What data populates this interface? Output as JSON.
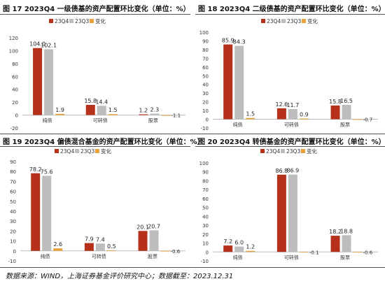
{
  "colors": {
    "q4": "#B5311C",
    "q3": "#BDBDBD",
    "chg": "#E8A33C",
    "axis": "#BBBBBB"
  },
  "charts": [
    {
      "title": "图 17 2023Q4 一级债基的资产配置环比变化（单位：%）",
      "chart_data": {
        "type": "bar",
        "categories": [
          "纯债",
          "可转债",
          "股票"
        ],
        "series": [
          {
            "name": "23Q4",
            "values": [
              104.0,
              15.8,
              1.2
            ]
          },
          {
            "name": "23Q3",
            "values": [
              102.1,
              14.4,
              2.3
            ]
          },
          {
            "name": "变化",
            "values": [
              1.9,
              1.5,
              -1.1
            ]
          }
        ],
        "value_labels": [
          [
            "104.0",
            "15.8",
            "1.2"
          ],
          [
            "102.1",
            "14.4",
            "2.3"
          ],
          [
            "1.9",
            "1.5",
            "-1.1"
          ]
        ],
        "yticks": [
          "120",
          "100",
          "80",
          "60",
          "40",
          "20",
          "0",
          "-20"
        ],
        "ylim": [
          -20,
          120
        ],
        "legend": "top-center"
      }
    },
    {
      "title": "图 18 2023Q4 二级债基的资产配置环比变化（单位：%）",
      "chart_data": {
        "type": "bar",
        "categories": [
          "纯债",
          "可转债",
          "股票"
        ],
        "series": [
          {
            "name": "23Q4",
            "values": [
              85.9,
              12.6,
              15.8
            ]
          },
          {
            "name": "23Q3",
            "values": [
              84.3,
              11.7,
              16.5
            ]
          },
          {
            "name": "变化",
            "values": [
              1.5,
              0.9,
              -0.7
            ]
          }
        ],
        "value_labels": [
          [
            "85.9",
            "12.6",
            "15.8"
          ],
          [
            "84.3",
            "11.7",
            "16.5"
          ],
          [
            "1.5",
            "0.9",
            "-0.7"
          ]
        ],
        "yticks": [
          "100",
          "90",
          "80",
          "70",
          "60",
          "50",
          "40",
          "30",
          "20",
          "10",
          "0",
          "-10"
        ],
        "ylim": [
          -10,
          100
        ],
        "legend": "top-center"
      }
    },
    {
      "title": "图 19 2023Q4 偏债混合基金的资产配置环比变化（单位：%）",
      "chart_data": {
        "type": "bar",
        "categories": [
          "纯债",
          "可转债",
          "股票"
        ],
        "series": [
          {
            "name": "23Q4",
            "values": [
              78.2,
              7.9,
              20.1
            ]
          },
          {
            "name": "23Q3",
            "values": [
              75.6,
              7.4,
              20.7
            ]
          },
          {
            "name": "变化",
            "values": [
              2.6,
              0.5,
              -0.6
            ]
          }
        ],
        "value_labels": [
          [
            "78.2",
            "7.9",
            "20.1"
          ],
          [
            "75.6",
            "7.4",
            "20.7"
          ],
          [
            "2.6",
            "0.5",
            "-0.6"
          ]
        ],
        "yticks": [
          "90",
          "80",
          "70",
          "60",
          "50",
          "40",
          "30",
          "20",
          "10",
          "0",
          "-10"
        ],
        "ylim": [
          -10,
          90
        ],
        "legend": "top-center"
      }
    },
    {
      "title": "图 20 2023Q4 转债基金的资产配置环比变化（单位：%）",
      "chart_data": {
        "type": "bar",
        "categories": [
          "纯债",
          "可转债",
          "股票"
        ],
        "series": [
          {
            "name": "23Q4",
            "values": [
              7.2,
              86.8,
              18.2
            ]
          },
          {
            "name": "23Q3",
            "values": [
              6.0,
              86.9,
              18.8
            ]
          },
          {
            "name": "变化",
            "values": [
              1.2,
              -0.1,
              -0.6
            ]
          }
        ],
        "value_labels": [
          [
            "7.2",
            "86.8",
            "18.2"
          ],
          [
            "6.0",
            "86.9",
            "18.8"
          ],
          [
            "1.2",
            "-0.1",
            "-0.6"
          ]
        ],
        "yticks": [
          "100",
          "90",
          "80",
          "70",
          "60",
          "50",
          "40",
          "30",
          "20",
          "10",
          "0",
          "-10"
        ],
        "ylim": [
          -10,
          100
        ],
        "legend": "top-center"
      }
    }
  ],
  "source": "数据来源：WIND，上海证券基金评价研究中心；数据截至：2023.12.31"
}
